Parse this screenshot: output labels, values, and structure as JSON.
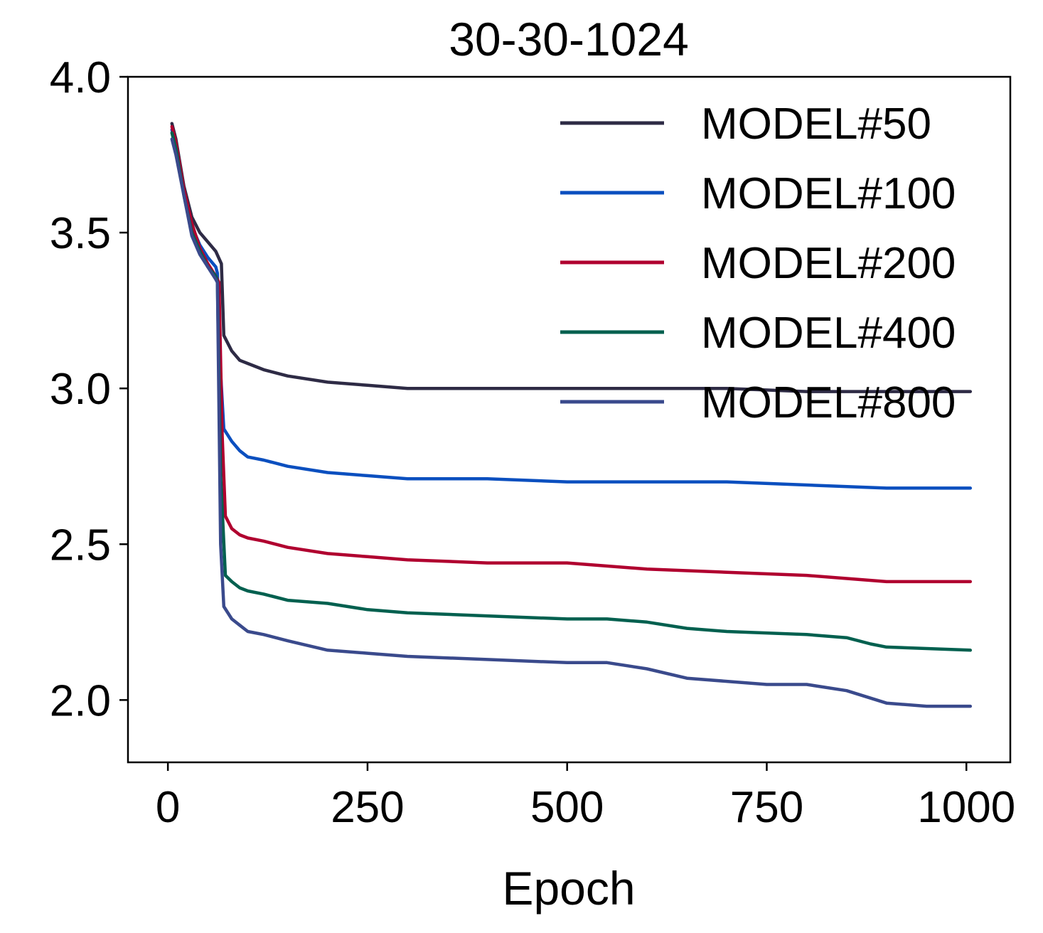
{
  "chart_data": {
    "type": "line",
    "title": "30-30-1024",
    "xlabel": "Epoch",
    "ylabel": "",
    "xlim": [
      -50,
      1055
    ],
    "ylim": [
      1.8,
      4.0
    ],
    "xticks": [
      0,
      250,
      500,
      750,
      1000
    ],
    "xtick_labels": [
      "0",
      "250",
      "500",
      "750",
      "1000"
    ],
    "yticks": [
      2.0,
      2.5,
      3.0,
      3.5,
      4.0
    ],
    "ytick_labels": [
      "2.0",
      "2.5",
      "3.0",
      "3.5",
      "4.0"
    ],
    "grid": false,
    "legend_position": "top-right",
    "series": [
      {
        "name": "MODEL#50",
        "color": "#2e2b45",
        "x": [
          5,
          10,
          20,
          30,
          40,
          50,
          60,
          67,
          70,
          80,
          90,
          100,
          120,
          150,
          200,
          250,
          300,
          400,
          500,
          600,
          700,
          800,
          900,
          1005
        ],
        "y": [
          3.85,
          3.8,
          3.65,
          3.55,
          3.5,
          3.47,
          3.44,
          3.4,
          3.17,
          3.12,
          3.09,
          3.08,
          3.06,
          3.04,
          3.02,
          3.01,
          3.0,
          3.0,
          3.0,
          3.0,
          3.0,
          2.99,
          2.99,
          2.99
        ]
      },
      {
        "name": "MODEL#100",
        "color": "#0b4fbf",
        "x": [
          5,
          10,
          20,
          30,
          40,
          50,
          60,
          62,
          66,
          70,
          80,
          90,
          100,
          120,
          150,
          200,
          250,
          300,
          400,
          500,
          600,
          700,
          800,
          900,
          1005
        ],
        "y": [
          3.83,
          3.78,
          3.63,
          3.52,
          3.46,
          3.42,
          3.39,
          3.37,
          3.05,
          2.87,
          2.83,
          2.8,
          2.78,
          2.77,
          2.75,
          2.73,
          2.72,
          2.71,
          2.71,
          2.7,
          2.7,
          2.7,
          2.69,
          2.68,
          2.68
        ]
      },
      {
        "name": "MODEL#200",
        "color": "#b0002f",
        "x": [
          5,
          10,
          20,
          30,
          40,
          50,
          60,
          64,
          68,
          72,
          80,
          90,
          100,
          120,
          150,
          200,
          250,
          300,
          400,
          500,
          600,
          700,
          800,
          900,
          1005
        ],
        "y": [
          3.84,
          3.79,
          3.64,
          3.53,
          3.45,
          3.4,
          3.36,
          3.34,
          2.85,
          2.59,
          2.55,
          2.53,
          2.52,
          2.51,
          2.49,
          2.47,
          2.46,
          2.45,
          2.44,
          2.44,
          2.42,
          2.41,
          2.4,
          2.38,
          2.38
        ]
      },
      {
        "name": "MODEL#400",
        "color": "#03604f",
        "x": [
          5,
          10,
          20,
          30,
          40,
          50,
          60,
          62,
          66,
          72,
          80,
          90,
          100,
          120,
          150,
          200,
          250,
          300,
          400,
          500,
          550,
          600,
          650,
          700,
          800,
          850,
          880,
          900,
          1005
        ],
        "y": [
          3.82,
          3.77,
          3.62,
          3.5,
          3.44,
          3.39,
          3.36,
          3.34,
          2.72,
          2.4,
          2.38,
          2.36,
          2.35,
          2.34,
          2.32,
          2.31,
          2.29,
          2.28,
          2.27,
          2.26,
          2.26,
          2.25,
          2.23,
          2.22,
          2.21,
          2.2,
          2.18,
          2.17,
          2.16
        ]
      },
      {
        "name": "MODEL#800",
        "color": "#3a4a8c",
        "x": [
          5,
          10,
          20,
          30,
          40,
          50,
          60,
          62,
          66,
          70,
          80,
          90,
          100,
          120,
          150,
          200,
          250,
          300,
          400,
          500,
          550,
          600,
          650,
          700,
          750,
          800,
          850,
          900,
          950,
          1005
        ],
        "y": [
          3.8,
          3.75,
          3.62,
          3.49,
          3.43,
          3.39,
          3.35,
          3.34,
          2.5,
          2.3,
          2.26,
          2.24,
          2.22,
          2.21,
          2.19,
          2.16,
          2.15,
          2.14,
          2.13,
          2.12,
          2.12,
          2.1,
          2.07,
          2.06,
          2.05,
          2.05,
          2.03,
          1.99,
          1.98,
          1.98
        ]
      }
    ]
  }
}
